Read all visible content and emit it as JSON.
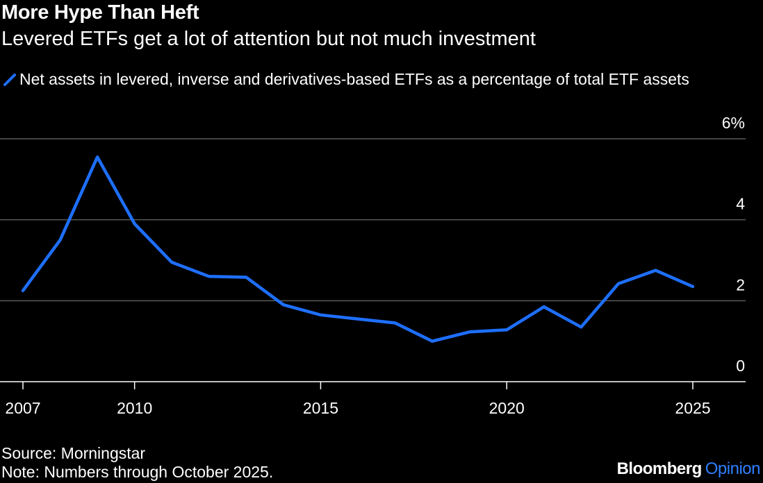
{
  "header": {
    "title": "More Hype Than Heft",
    "subtitle": "Levered ETFs get a lot of attention but not much investment"
  },
  "legend": {
    "label": "Net assets in levered, inverse and derivatives-based ETFs as a percentage of total ETF assets",
    "color": "#1e6fff"
  },
  "footer": {
    "source": "Source: Morningstar",
    "note": "Note: Numbers through October 2025.",
    "brand_primary": "Bloomberg",
    "brand_secondary": "Opinion"
  },
  "chart_data": {
    "type": "line",
    "series": [
      {
        "values": [
          2.25,
          3.5,
          5.55,
          3.9,
          2.95,
          2.6,
          2.58,
          1.9,
          1.65,
          1.55,
          1.45,
          1.0,
          1.23,
          1.28,
          1.85,
          1.35,
          2.42,
          2.75,
          2.35
        ]
      }
    ],
    "x": [
      2007,
      2008,
      2009,
      2010,
      2011,
      2012,
      2013,
      2014,
      2015,
      2016,
      2017,
      2018,
      2019,
      2020,
      2021,
      2022,
      2023,
      2024,
      2025
    ],
    "x_ticks": [
      "2007",
      "2010",
      "2015",
      "2020",
      "2025"
    ],
    "y_ticks": [
      "0",
      "2",
      "4",
      "6%"
    ],
    "ylim": [
      0,
      6
    ],
    "xlim": [
      2007,
      2025
    ],
    "grid": true,
    "legend_position": "top-left",
    "line_color": "#1e6fff",
    "grid_color": "#5a5a5a"
  }
}
